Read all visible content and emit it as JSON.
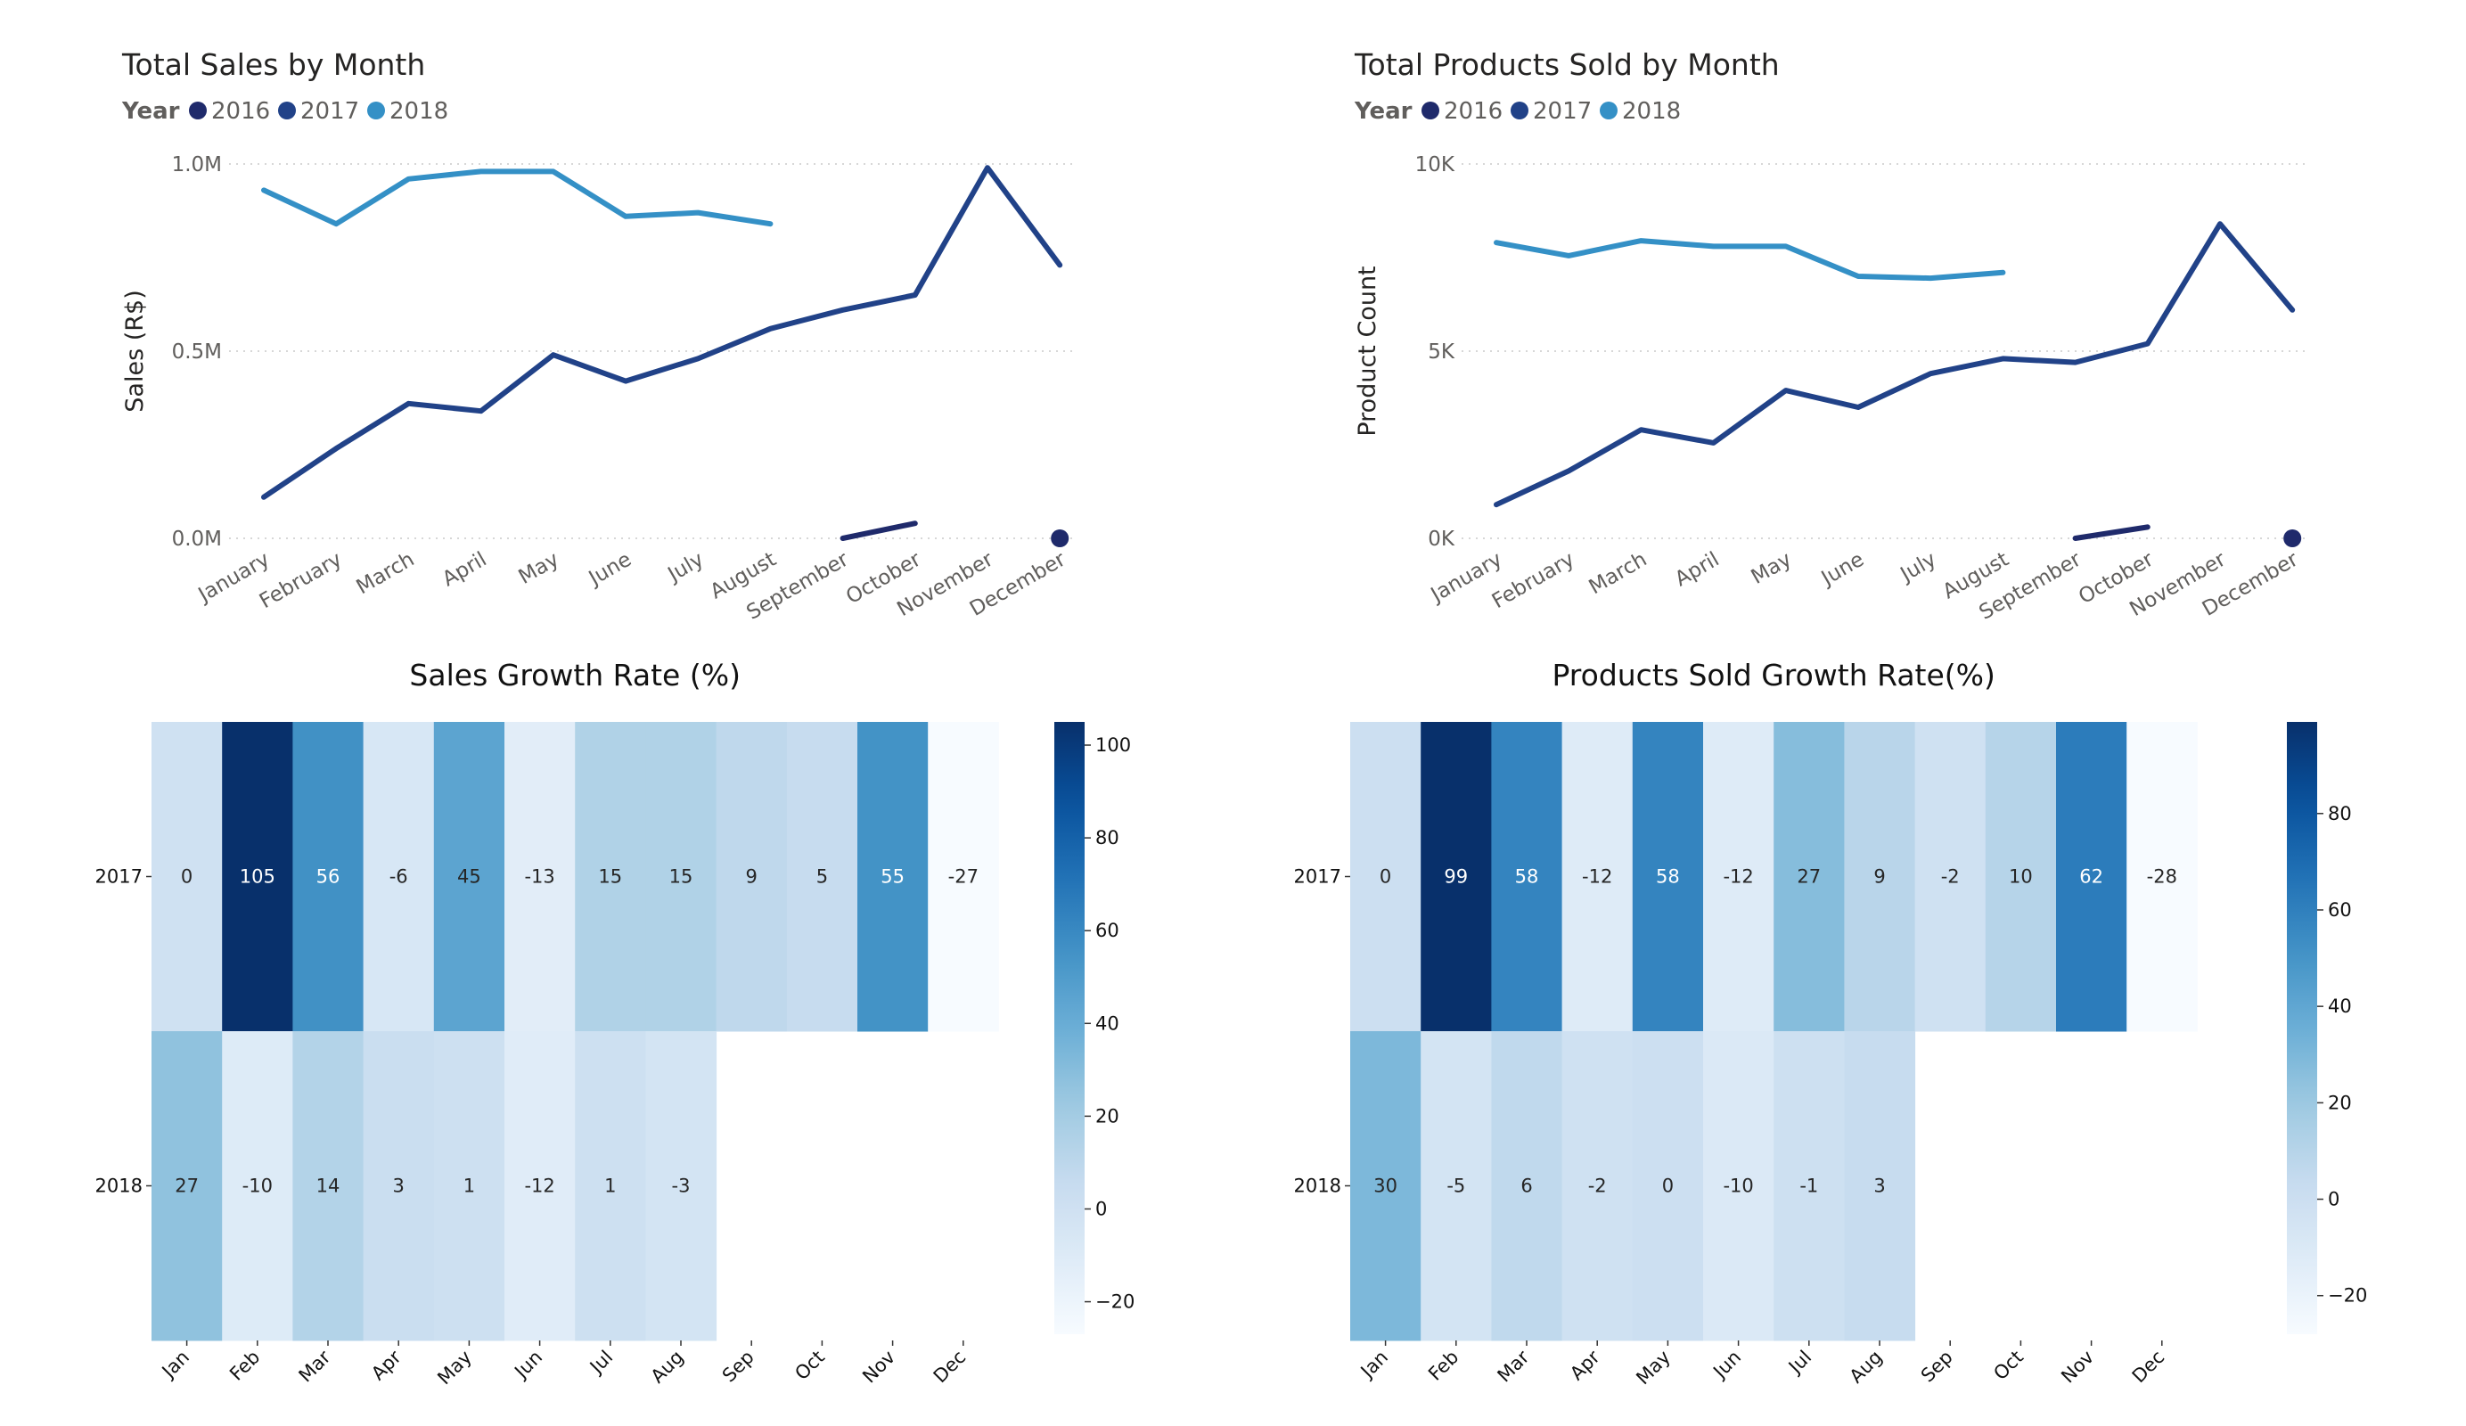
{
  "colors": {
    "y2016": "#1f2a6b",
    "y2017": "#214288",
    "y2018": "#3490c6",
    "grid": "#d7d7d7"
  },
  "chart_data": [
    {
      "type": "line",
      "title": "Total Sales by Month",
      "legend_title": "Year",
      "legend_position": "top-left",
      "ylabel": "Sales (R$)",
      "xlabel": "",
      "ylim": [
        0,
        1000000
      ],
      "yticks": [
        0,
        500000,
        1000000
      ],
      "ytick_labels": [
        "0.0M",
        "0.5M",
        "1.0M"
      ],
      "categories": [
        "January",
        "February",
        "March",
        "April",
        "May",
        "June",
        "July",
        "August",
        "September",
        "October",
        "November",
        "December"
      ],
      "series": [
        {
          "name": "2016",
          "values": [
            null,
            null,
            null,
            null,
            null,
            null,
            null,
            null,
            0,
            40000,
            null,
            0
          ]
        },
        {
          "name": "2017",
          "values": [
            110000,
            240000,
            360000,
            340000,
            490000,
            420000,
            480000,
            560000,
            610000,
            650000,
            990000,
            730000
          ]
        },
        {
          "name": "2018",
          "values": [
            930000,
            840000,
            960000,
            980000,
            980000,
            860000,
            870000,
            840000,
            null,
            null,
            null,
            null
          ]
        }
      ],
      "grid": true
    },
    {
      "type": "line",
      "title": "Total Products Sold by Month",
      "legend_title": "Year",
      "legend_position": "top-left",
      "ylabel": "Product Count",
      "xlabel": "",
      "ylim": [
        0,
        10000
      ],
      "yticks": [
        0,
        5000,
        10000
      ],
      "ytick_labels": [
        "0K",
        "5K",
        "10K"
      ],
      "categories": [
        "January",
        "February",
        "March",
        "April",
        "May",
        "June",
        "July",
        "August",
        "September",
        "October",
        "November",
        "December"
      ],
      "series": [
        {
          "name": "2016",
          "values": [
            null,
            null,
            null,
            null,
            null,
            null,
            null,
            null,
            0,
            300,
            null,
            0
          ]
        },
        {
          "name": "2017",
          "values": [
            900,
            1800,
            2900,
            2550,
            3950,
            3500,
            4400,
            4800,
            4700,
            5200,
            8400,
            6100
          ]
        },
        {
          "name": "2018",
          "values": [
            7900,
            7550,
            7950,
            7800,
            7800,
            7000,
            6950,
            7100,
            null,
            null,
            null,
            null
          ]
        }
      ],
      "grid": true
    },
    {
      "type": "heatmap",
      "title": "Sales Growth Rate (%)",
      "categories": [
        "Jan",
        "Feb",
        "Mar",
        "Apr",
        "May",
        "Jun",
        "Jul",
        "Aug",
        "Sep",
        "Oct",
        "Nov",
        "Dec"
      ],
      "rows": [
        "2017",
        "2018"
      ],
      "values": [
        [
          0,
          105,
          56,
          -6,
          45,
          -13,
          15,
          15,
          9,
          5,
          55,
          -27
        ],
        [
          27,
          -10,
          14,
          3,
          1,
          -12,
          1,
          -3,
          null,
          null,
          null,
          null
        ]
      ],
      "colorbar_range": [
        -27,
        105
      ],
      "colorbar_ticks": [
        -20,
        0,
        20,
        40,
        60,
        80,
        100
      ]
    },
    {
      "type": "heatmap",
      "title": "Products Sold Growth Rate(%)",
      "categories": [
        "Jan",
        "Feb",
        "Mar",
        "Apr",
        "May",
        "Jun",
        "Jul",
        "Aug",
        "Sep",
        "Oct",
        "Nov",
        "Dec"
      ],
      "rows": [
        "2017",
        "2018"
      ],
      "values": [
        [
          0,
          99,
          58,
          -12,
          58,
          -12,
          27,
          9,
          -2,
          10,
          62,
          -28
        ],
        [
          30,
          -5,
          6,
          -2,
          0,
          -10,
          -1,
          3,
          null,
          null,
          null,
          null
        ]
      ],
      "colorbar_range": [
        -28,
        99
      ],
      "colorbar_ticks": [
        -20,
        0,
        20,
        40,
        60,
        80
      ]
    }
  ]
}
